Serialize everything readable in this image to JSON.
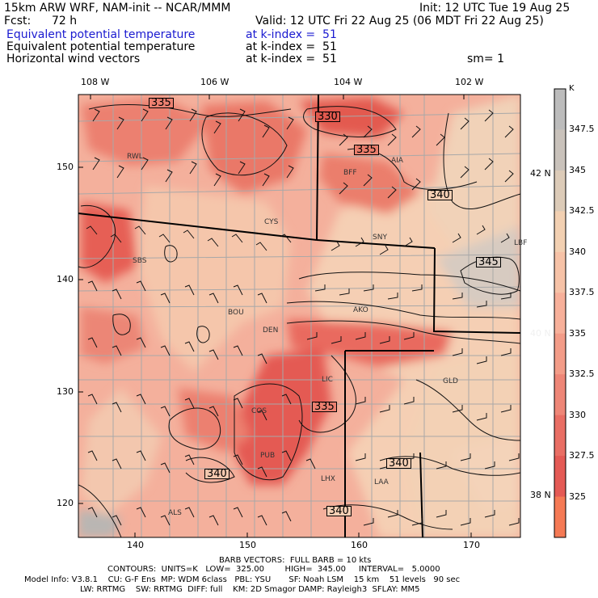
{
  "header": {
    "model_title": "15km ARW WRF, NAM-init -- NCAR/MMM",
    "init": "Init: 12 UTC Tue 19 Aug 25",
    "fcst_label": "Fcst:",
    "fcst_value": "72 h",
    "valid": "Valid: 12 UTC Fri 22 Aug 25 (06 MDT Fri 22 Aug 25)",
    "fields": [
      {
        "name": "Equivalent potential temperature",
        "level": "at k-index =  51",
        "color": "#1a1ad0"
      },
      {
        "name": "Equivalent potential temperature",
        "level": "at k-index =  51",
        "color": "#000000"
      },
      {
        "name": "Horizontal wind vectors",
        "level": "at k-index =  51",
        "color": "#000000"
      }
    ],
    "smoothing": "sm= 1"
  },
  "map": {
    "top_lon_labels": [
      "108 W",
      "106 W",
      "104 W",
      "102 W"
    ],
    "bottom_ticks": [
      "140",
      "150",
      "160",
      "170"
    ],
    "left_ticks": [
      "150",
      "140",
      "130",
      "120"
    ],
    "right_lat_labels": [
      "42 N",
      "40 N",
      "38 N"
    ],
    "contour_labels": [
      "335",
      "330",
      "335",
      "340",
      "345",
      "335",
      "340",
      "340",
      "340"
    ],
    "cities": [
      "RWL",
      "AIA",
      "BFF",
      "CYS",
      "SNY",
      "LBF",
      "SBS",
      "BOU",
      "AKO",
      "DEN",
      "LIC",
      "GLD",
      "COS",
      "PUB",
      "LHX",
      "LAA",
      "ALS"
    ]
  },
  "colorbar": {
    "unit": "K",
    "labels": [
      "347.5",
      "345",
      "342.5",
      "340",
      "337.5",
      "335",
      "332.5",
      "330",
      "327.5",
      "325"
    ],
    "colors": [
      "#bcbcbc",
      "#c9c2bb",
      "#dccbb8",
      "#f2d0b2",
      "#f6c2a7",
      "#f7b09a",
      "#f39c88",
      "#ee8677",
      "#e96e64",
      "#e45a55",
      "#f57a55"
    ]
  },
  "footer": {
    "barb_line": "BARB VECTORS:  FULL BARB = 10 kts",
    "contour_line": "CONTOURS:  UNITS=K   LOW=  325.00        HIGH=  345.00     INTERVAL=   5.0000",
    "model_info_1": "Model Info: V3.8.1    CU: G-F Ens  MP: WDM 6class   PBL: YSU       SF: Noah LSM    15 km    51 levels   90 sec",
    "model_info_2": "LW: RRTMG    SW: RRTMG  DIFF: full    KM: 2D Smagor DAMP: Rayleigh3  SFLAY: MM5"
  }
}
